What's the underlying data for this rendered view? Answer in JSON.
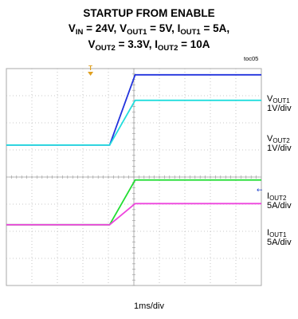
{
  "title": {
    "line1": "STARTUP FROM ENABLE",
    "line2": {
      "vin_sym": "V",
      "vin_sub": "IN",
      "vin_val": " = 24V, ",
      "vout1_sym": "V",
      "vout1_sub": "OUT1",
      "vout1_val": " = 5V, ",
      "iout1_sym": "I",
      "iout1_sub": "OUT1",
      "iout1_val": " = 5A,"
    },
    "line3": {
      "vout2_sym": "V",
      "vout2_sub": "OUT2",
      "vout2_val": " = 3.3V, ",
      "iout2_sym": "I",
      "iout2_sub": "OUT2",
      "iout2_val": " = 10A"
    }
  },
  "figure_id": "toc05",
  "trigger_marker": "T",
  "timebase": "1ms/div",
  "chart_data": {
    "type": "line",
    "grid": true,
    "grid_divisions": {
      "x": 10,
      "y": 8
    },
    "time_per_div_ms": 1,
    "series": [
      {
        "name": "VOUT1",
        "sym": "V",
        "sub": "OUT1",
        "scale": "1V/div",
        "color": "#2233dd",
        "points": [
          [
            0,
            5.18
          ],
          [
            4.05,
            5.18
          ],
          [
            5.05,
            7.77
          ],
          [
            10,
            7.77
          ]
        ]
      },
      {
        "name": "VOUT2",
        "sym": "V",
        "sub": "OUT2",
        "scale": "1V/div",
        "color": "#22dddd",
        "points": [
          [
            0,
            5.18
          ],
          [
            4.05,
            5.18
          ],
          [
            5.05,
            6.83
          ],
          [
            10,
            6.83
          ]
        ]
      },
      {
        "name": "IOUT2",
        "sym": "I",
        "sub": "OUT2",
        "scale": "5A/div",
        "color": "#22dd33",
        "points": [
          [
            0,
            2.24
          ],
          [
            4.05,
            2.24
          ],
          [
            5.05,
            3.89
          ],
          [
            10,
            3.89
          ]
        ]
      },
      {
        "name": "IOUT1",
        "sym": "I",
        "sub": "OUT1",
        "scale": "5A/div",
        "color": "#ee44dd",
        "points": [
          [
            0,
            2.24
          ],
          [
            4.05,
            2.24
          ],
          [
            5.05,
            3.02
          ],
          [
            10,
            3.02
          ]
        ]
      }
    ],
    "trigger_time_div": 3.3,
    "trigger_color": "#e0a020",
    "ground_marker": {
      "sym": "←",
      "color": "#2244cc",
      "level_div": 3.55
    }
  }
}
